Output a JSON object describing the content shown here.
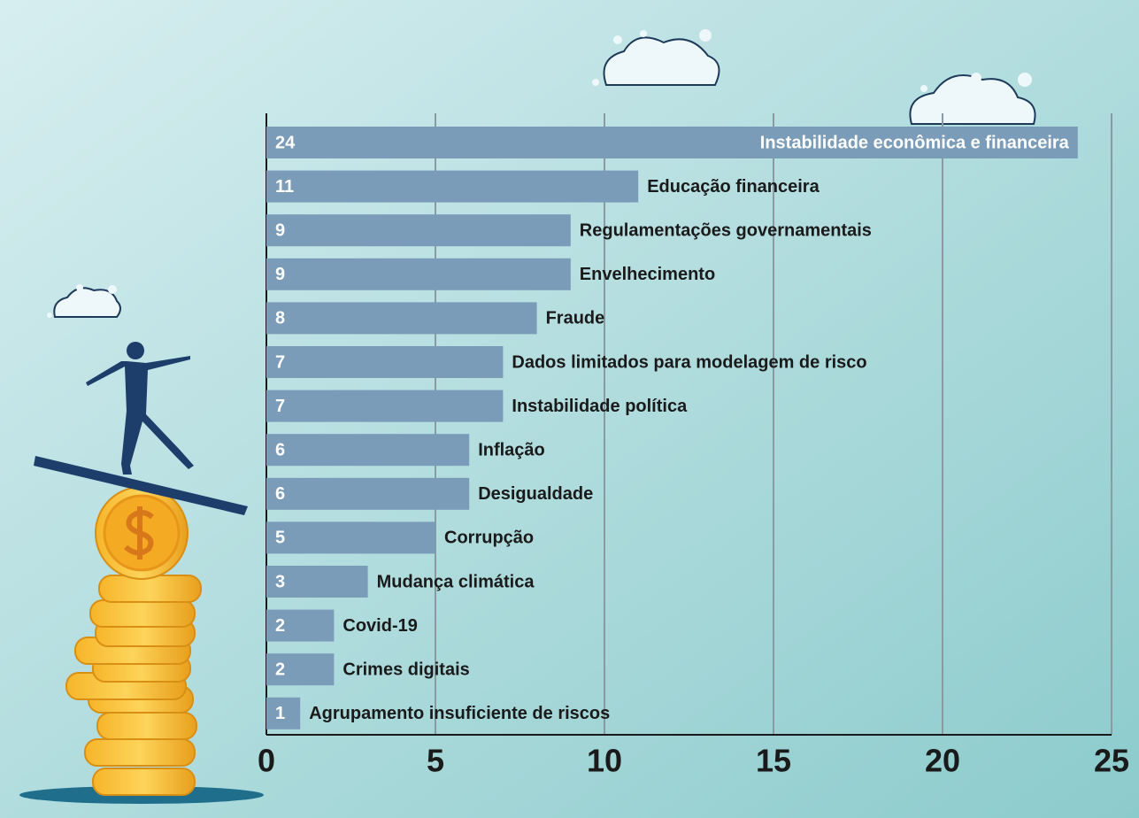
{
  "chart_data": {
    "type": "barh",
    "categories": [
      "Instabilidade econômica e financeira",
      "Educação financeira",
      "Regulamentações governamentais",
      "Envelhecimento",
      "Fraude",
      "Dados limitados para modelagem de risco",
      "Instabilidade política",
      "Inflação",
      "Desigualdade",
      "Corrupção",
      "Mudança climática",
      "Covid-19",
      "Crimes digitais",
      "Agrupamento insuficiente de riscos"
    ],
    "values": [
      24,
      11,
      9,
      9,
      8,
      7,
      7,
      6,
      6,
      5,
      3,
      2,
      2,
      1
    ],
    "color": "#7a9cb8",
    "xlim": [
      0,
      25
    ],
    "xticks": [
      0,
      5,
      10,
      15,
      20,
      25
    ],
    "grid": true
  }
}
